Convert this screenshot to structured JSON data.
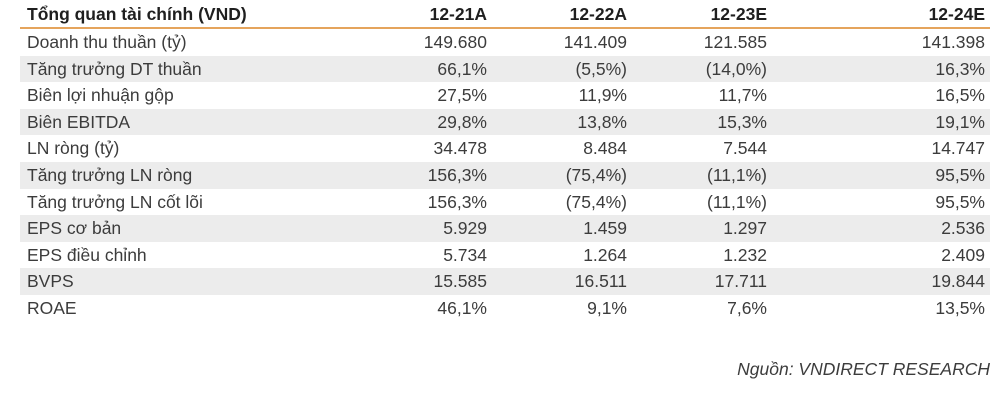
{
  "table": {
    "title": "Tổng quan tài chính (VND)",
    "columns": [
      "12-21A",
      "12-22A",
      "12-23E",
      "12-24E"
    ],
    "rows": [
      {
        "label": "Doanh thu thuần (tỷ)",
        "values": [
          "149.680",
          "141.409",
          "121.585",
          "141.398"
        ]
      },
      {
        "label": "Tăng trưởng DT thuần",
        "values": [
          "66,1%",
          "(5,5%)",
          "(14,0%)",
          "16,3%"
        ]
      },
      {
        "label": "Biên lợi nhuận gộp",
        "values": [
          "27,5%",
          "11,9%",
          "11,7%",
          "16,5%"
        ]
      },
      {
        "label": "Biên EBITDA",
        "values": [
          "29,8%",
          "13,8%",
          "15,3%",
          "19,1%"
        ]
      },
      {
        "label": "LN ròng (tỷ)",
        "values": [
          "34.478",
          "8.484",
          "7.544",
          "14.747"
        ]
      },
      {
        "label": "Tăng trưởng LN ròng",
        "values": [
          "156,3%",
          "(75,4%)",
          "(11,1%)",
          "95,5%"
        ]
      },
      {
        "label": "Tăng trưởng LN cốt lõi",
        "values": [
          "156,3%",
          "(75,4%)",
          "(11,1%)",
          "95,5%"
        ]
      },
      {
        "label": "EPS cơ bản",
        "values": [
          "5.929",
          "1.459",
          "1.297",
          "2.536"
        ]
      },
      {
        "label": "EPS điều chỉnh",
        "values": [
          "5.734",
          "1.264",
          "1.232",
          "2.409"
        ]
      },
      {
        "label": "BVPS",
        "values": [
          "15.585",
          "16.511",
          "17.711",
          "19.844"
        ]
      },
      {
        "label": "ROAE",
        "values": [
          "46,1%",
          "9,1%",
          "7,6%",
          "13,5%"
        ]
      }
    ]
  },
  "footer": {
    "source": "Nguồn: VNDIRECT RESEARCH"
  },
  "colors": {
    "accent_line": "#E5A45C",
    "row_stripe": "#ECECEC",
    "text": "#3C3C3C"
  }
}
